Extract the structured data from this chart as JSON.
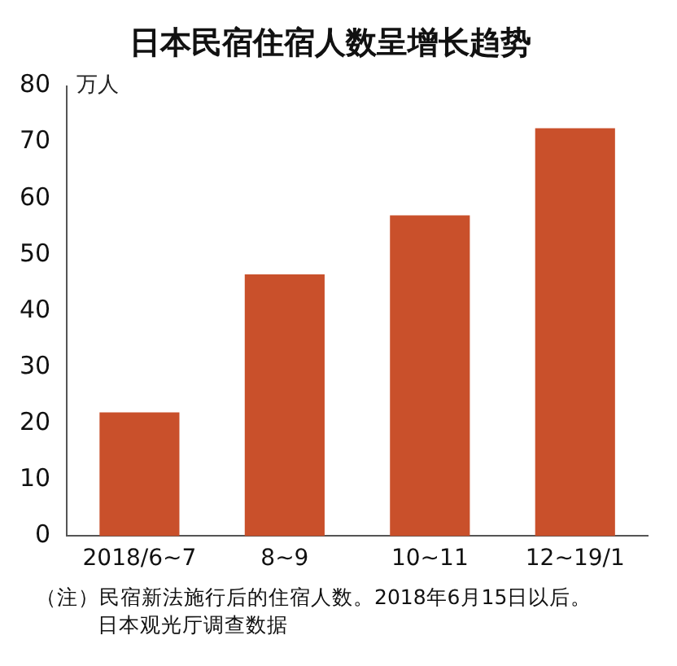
{
  "chart_data": {
    "type": "bar",
    "title": "日本民宿住宿人数呈增长趋势",
    "ylabel": "万人",
    "categories": [
      "2018/6~7",
      "8~9",
      "10~11",
      "12~19/1"
    ],
    "values": [
      22,
      46.5,
      57,
      72.5
    ],
    "color": "#c9502b",
    "ylim": [
      0,
      80
    ],
    "yticks": [
      0,
      10,
      20,
      30,
      40,
      50,
      60,
      70,
      80
    ],
    "grid": false,
    "legend": false,
    "annotations": [
      "（注）民宿新法施行后的住宿人数。2018年6月15日以后。",
      "日本观光厅调查数据"
    ]
  }
}
